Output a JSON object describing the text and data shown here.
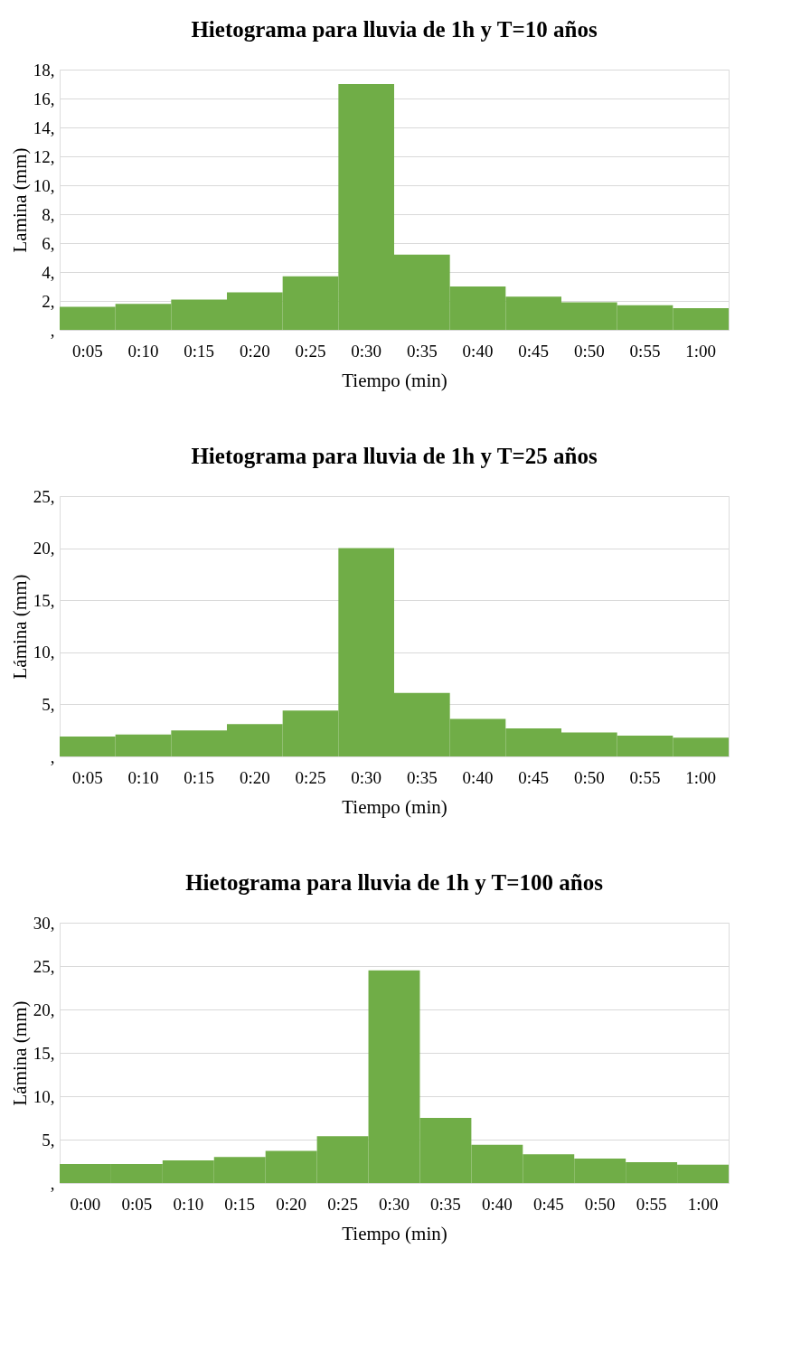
{
  "chart_data": [
    {
      "type": "bar",
      "title": "Hietograma para lluvia de 1h y T=10 años",
      "xlabel": "Tiempo (min)",
      "ylabel": "Lamina (mm)",
      "categories": [
        "0:05",
        "0:10",
        "0:15",
        "0:20",
        "0:25",
        "0:30",
        "0:35",
        "0:40",
        "0:45",
        "0:50",
        "0:55",
        "1:00"
      ],
      "series": [
        {
          "color": "#70ad47",
          "values": [
            1.6,
            1.8,
            2.1,
            2.6,
            3.7,
            17.0,
            5.2,
            3.0,
            2.3,
            1.9,
            1.7,
            1.5
          ]
        }
      ],
      "ylim": [
        0,
        18
      ],
      "yticks": [
        {
          "value": 0,
          "label": ","
        },
        {
          "value": 2,
          "label": "2,"
        },
        {
          "value": 4,
          "label": "4,"
        },
        {
          "value": 6,
          "label": "6,"
        },
        {
          "value": 8,
          "label": "8,"
        },
        {
          "value": 10,
          "label": "10,"
        },
        {
          "value": 12,
          "label": "12,"
        },
        {
          "value": 14,
          "label": "14,"
        },
        {
          "value": 16,
          "label": "16,"
        },
        {
          "value": 18,
          "label": "18,"
        }
      ],
      "grid": "y"
    },
    {
      "type": "bar",
      "title": "Hietograma para lluvia de 1h y T=25 años",
      "xlabel": "Tiempo (min)",
      "ylabel": "Lámina (mm)",
      "categories": [
        "0:05",
        "0:10",
        "0:15",
        "0:20",
        "0:25",
        "0:30",
        "0:35",
        "0:40",
        "0:45",
        "0:50",
        "0:55",
        "1:00"
      ],
      "series": [
        {
          "color": "#70ad47",
          "values": [
            1.9,
            2.1,
            2.5,
            3.1,
            4.4,
            20.0,
            6.1,
            3.6,
            2.7,
            2.3,
            2.0,
            1.8
          ]
        }
      ],
      "ylim": [
        0,
        25
      ],
      "yticks": [
        {
          "value": 0,
          "label": ","
        },
        {
          "value": 5,
          "label": "5,"
        },
        {
          "value": 10,
          "label": "10,"
        },
        {
          "value": 15,
          "label": "15,"
        },
        {
          "value": 20,
          "label": "20,"
        },
        {
          "value": 25,
          "label": "25,"
        }
      ],
      "grid": "y"
    },
    {
      "type": "bar",
      "title": "Hietograma para lluvia de 1h y T=100 años",
      "xlabel": "Tiempo (min)",
      "ylabel": "Lámina (mm)",
      "categories": [
        "0:00",
        "0:05",
        "0:10",
        "0:15",
        "0:20",
        "0:25",
        "0:30",
        "0:35",
        "0:40",
        "0:45",
        "0:50",
        "0:55",
        "1:00"
      ],
      "series": [
        {
          "color": "#70ad47",
          "values": [
            2.2,
            2.2,
            2.6,
            3.0,
            3.7,
            5.4,
            24.5,
            7.5,
            4.4,
            3.3,
            2.8,
            2.4,
            2.1
          ]
        }
      ],
      "ylim": [
        0,
        30
      ],
      "yticks": [
        {
          "value": 0,
          "label": ","
        },
        {
          "value": 5,
          "label": "5,"
        },
        {
          "value": 10,
          "label": "10,"
        },
        {
          "value": 15,
          "label": "15,"
        },
        {
          "value": 20,
          "label": "20,"
        },
        {
          "value": 25,
          "label": "25,"
        },
        {
          "value": 30,
          "label": "30,"
        }
      ],
      "grid": "y"
    }
  ]
}
